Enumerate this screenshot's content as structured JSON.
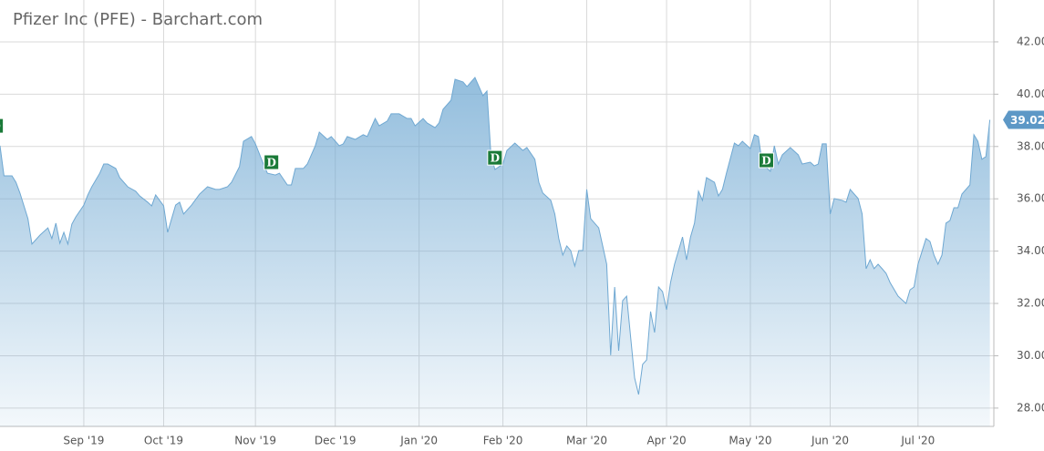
{
  "chart_data": {
    "type": "area",
    "title": "Pfizer Inc (PFE) - Barchart.com",
    "x": [
      0,
      1,
      3,
      4,
      5,
      7,
      8,
      10,
      12,
      13,
      14,
      15,
      16,
      17,
      18,
      19,
      21,
      22,
      23,
      25,
      26,
      27,
      29,
      30,
      32,
      34,
      35,
      37,
      38,
      39,
      41,
      42,
      44,
      45,
      46,
      48,
      50,
      52,
      54,
      55,
      57,
      58,
      60,
      61,
      63,
      64,
      66,
      67,
      69,
      70,
      72,
      73,
      74,
      76,
      77,
      79,
      80,
      82,
      83,
      85,
      86,
      87,
      89,
      91,
      92,
      94,
      95,
      97,
      98,
      100,
      102,
      103,
      104,
      106,
      107,
      109,
      110,
      111,
      113,
      114,
      116,
      117,
      119,
      121,
      122,
      123,
      124,
      126,
      127,
      129,
      131,
      132,
      134,
      135,
      136,
      138,
      139,
      140,
      141,
      142,
      143,
      144,
      145,
      146,
      147,
      148,
      150,
      151,
      152,
      153,
      154,
      155,
      156,
      157,
      158,
      159,
      160,
      161,
      162,
      163,
      164,
      165,
      166,
      167,
      168,
      169,
      171,
      172,
      173,
      174,
      175,
      176,
      177,
      179,
      180,
      181,
      182,
      184,
      185,
      186,
      188,
      189,
      190,
      191,
      193,
      194,
      195,
      196,
      198,
      200,
      201,
      203,
      204,
      205,
      206,
      207,
      208,
      209,
      211,
      212,
      213,
      215,
      216,
      217,
      218,
      219,
      220,
      221,
      222,
      223,
      225,
      227,
      228,
      229,
      230,
      232,
      233,
      234,
      235,
      236,
      237,
      238,
      239,
      240,
      241,
      243,
      244,
      245,
      246,
      247,
      248
    ],
    "series": [
      {
        "name": "PFE",
        "color": "#6fa8d2",
        "values": [
          38.03,
          36.88,
          36.88,
          36.63,
          36.22,
          35.24,
          34.27,
          34.61,
          34.89,
          34.48,
          35.07,
          34.3,
          34.72,
          34.27,
          35.03,
          35.31,
          35.76,
          36.15,
          36.46,
          36.98,
          37.33,
          37.33,
          37.16,
          36.81,
          36.46,
          36.29,
          36.11,
          35.87,
          35.73,
          36.15,
          35.73,
          34.72,
          35.76,
          35.87,
          35.42,
          35.76,
          36.18,
          36.46,
          36.36,
          36.36,
          36.46,
          36.63,
          37.23,
          38.2,
          38.38,
          38.1,
          37.33,
          36.98,
          36.91,
          36.98,
          36.53,
          36.53,
          37.16,
          37.16,
          37.33,
          38.03,
          38.55,
          38.27,
          38.38,
          38.03,
          38.1,
          38.38,
          38.27,
          38.45,
          38.38,
          39.07,
          38.79,
          38.97,
          39.25,
          39.25,
          39.07,
          39.07,
          38.79,
          39.07,
          38.9,
          38.72,
          38.9,
          39.42,
          39.77,
          40.57,
          40.47,
          40.29,
          40.64,
          39.94,
          40.12,
          37.68,
          37.12,
          37.33,
          37.85,
          38.13,
          37.85,
          37.96,
          37.51,
          36.63,
          36.22,
          35.94,
          35.42,
          34.48,
          33.85,
          34.2,
          34.02,
          33.43,
          34.02,
          34.02,
          36.36,
          35.24,
          34.89,
          34.2,
          33.5,
          30.02,
          32.63,
          30.19,
          32.11,
          32.28,
          30.71,
          29.15,
          28.52,
          29.67,
          29.84,
          31.69,
          30.89,
          32.63,
          32.45,
          31.76,
          32.8,
          33.5,
          34.54,
          33.67,
          34.54,
          35.07,
          36.29,
          35.94,
          36.81,
          36.63,
          36.11,
          36.36,
          36.98,
          38.13,
          38.03,
          38.2,
          37.92,
          38.45,
          38.38,
          37.33,
          37.05,
          38.03,
          37.33,
          37.68,
          37.96,
          37.68,
          37.33,
          37.4,
          37.26,
          37.33,
          38.1,
          38.1,
          35.42,
          36.01,
          35.94,
          35.87,
          36.36,
          36.01,
          35.42,
          33.33,
          33.67,
          33.33,
          33.5,
          33.33,
          33.15,
          32.8,
          32.28,
          32.0,
          32.52,
          32.63,
          33.5,
          34.48,
          34.37,
          33.85,
          33.5,
          33.85,
          35.07,
          35.17,
          35.66,
          35.66,
          36.18,
          36.53,
          38.45,
          38.2,
          37.51,
          37.61,
          39.02
        ]
      }
    ],
    "annotations": [
      {
        "x": -1,
        "y": 38.79,
        "label": "D"
      },
      {
        "x": 68,
        "y": 37.4,
        "label": "D"
      },
      {
        "x": 124,
        "y": 37.57,
        "label": "D"
      },
      {
        "x": 192,
        "y": 37.47,
        "label": "D"
      }
    ],
    "xlim": [
      0,
      249
    ],
    "xticks": [
      {
        "value": 21,
        "label": "Sep '19"
      },
      {
        "value": 41,
        "label": "Oct '19"
      },
      {
        "value": 64,
        "label": "Nov '19"
      },
      {
        "value": 84,
        "label": "Dec '19"
      },
      {
        "value": 105,
        "label": "Jan '20"
      },
      {
        "value": 126,
        "label": "Feb '20"
      },
      {
        "value": 147,
        "label": "Mar '20"
      },
      {
        "value": 167,
        "label": "Apr '20"
      },
      {
        "value": 188,
        "label": "May '20"
      },
      {
        "value": 208,
        "label": "Jun '20"
      },
      {
        "value": 230,
        "label": "Jul '20"
      }
    ],
    "ylim": [
      27.3,
      43.6
    ],
    "yticks": [
      {
        "value": 28,
        "label": "28.00"
      },
      {
        "value": 30,
        "label": "30.00"
      },
      {
        "value": 32,
        "label": "32.00"
      },
      {
        "value": 34,
        "label": "34.00"
      },
      {
        "value": 36,
        "label": "36.00"
      },
      {
        "value": 38,
        "label": "38.00"
      },
      {
        "value": 40,
        "label": "40.00"
      },
      {
        "value": 42,
        "label": "42.00"
      }
    ],
    "grid": true
  }
}
